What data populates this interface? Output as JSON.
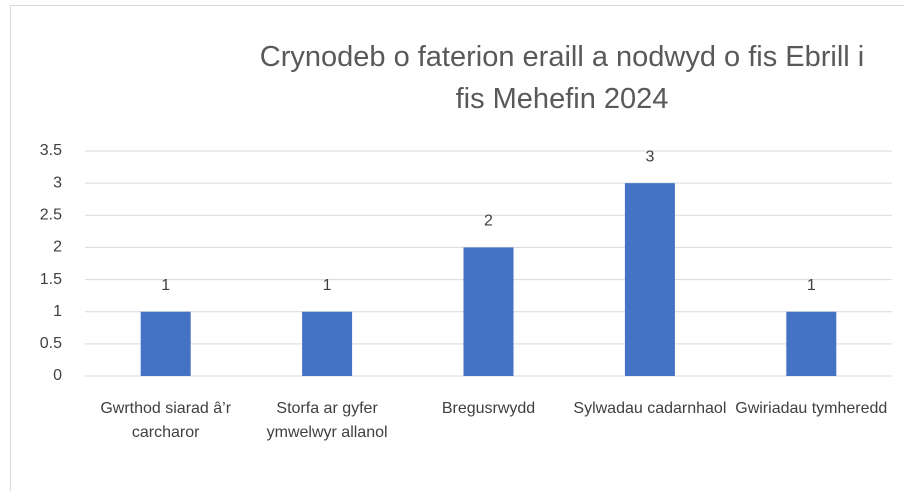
{
  "chart_data": {
    "type": "bar",
    "title": "Crynodeb o faterion eraill a nodwyd o fis Ebrill i fis Mehefin 2024",
    "categories": [
      "Gwrthod siarad â’r carcharor",
      "Storfa ar gyfer ymwelwyr allanol",
      "Bregusrwydd",
      "Sylwadau cadarnhaol",
      "Gwiriadau tymheredd"
    ],
    "values": [
      1,
      1,
      2,
      3,
      1
    ],
    "color": "#4472c4",
    "ylim": [
      0,
      3.5
    ],
    "yticks": [
      0,
      0.5,
      1,
      1.5,
      2,
      2.5,
      3,
      3.5
    ],
    "grid": true
  }
}
